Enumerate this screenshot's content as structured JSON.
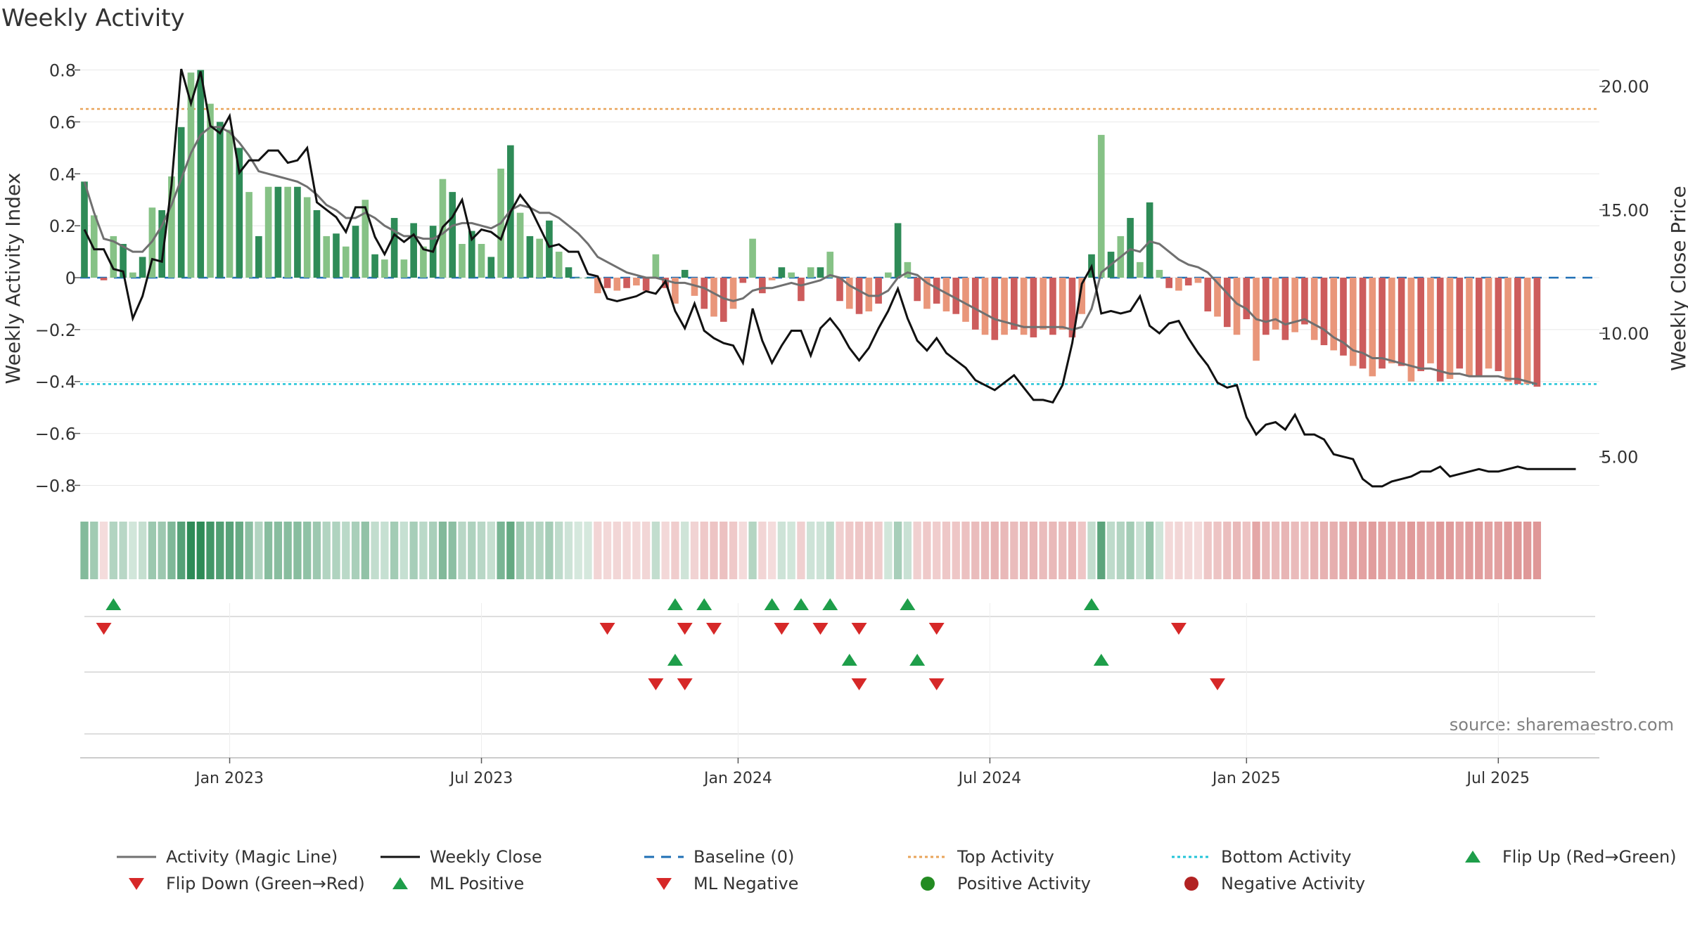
{
  "chart_data": {
    "type": "bar",
    "title": "Weekly Activity",
    "ylabel": "Weekly Activity Index",
    "y2label": "Weekly Close Price",
    "source": "source: sharemaestro.com",
    "ylim": [
      -0.88,
      0.88
    ],
    "y2lim": [
      3.0,
      21.5
    ],
    "yticks": [
      0.8,
      0.6,
      0.4,
      0.2,
      0,
      -0.2,
      -0.4,
      -0.6,
      -0.8
    ],
    "ytick_labels": [
      "0.8",
      "0.6",
      "0.4",
      "0.2",
      "0",
      "−0.2",
      "−0.4",
      "−0.6",
      "−0.8"
    ],
    "y2ticks": [
      20,
      15,
      10,
      5
    ],
    "y2tick_labels": [
      "20.00",
      "15.00",
      "10.00",
      "5.00"
    ],
    "top_activity": 0.65,
    "bottom_activity": -0.41,
    "x_weeks": 157,
    "xticks": [
      {
        "label": "Jan 2023",
        "week": 15
      },
      {
        "label": "Jul 2023",
        "week": 41
      },
      {
        "label": "Jan 2024",
        "week": 67.5
      },
      {
        "label": "Jul 2024",
        "week": 93.5
      },
      {
        "label": "Jan 2025",
        "week": 120
      },
      {
        "label": "Jul 2025",
        "week": 146
      }
    ],
    "series": [
      {
        "name": "Weekly Activity Index",
        "kind": "bar",
        "values": [
          0.37,
          0.24,
          -0.01,
          0.16,
          0.13,
          0.02,
          0.08,
          0.27,
          0.26,
          0.39,
          0.58,
          0.79,
          0.8,
          0.67,
          0.6,
          0.57,
          0.5,
          0.33,
          0.16,
          0.35,
          0.35,
          0.35,
          0.35,
          0.31,
          0.26,
          0.16,
          0.17,
          0.12,
          0.2,
          0.3,
          0.09,
          0.07,
          0.23,
          0.07,
          0.21,
          0.12,
          0.2,
          0.38,
          0.33,
          0.13,
          0.18,
          0.13,
          0.08,
          0.42,
          0.51,
          0.25,
          0.16,
          0.15,
          0.22,
          0.1,
          0.04,
          0.0,
          0.0,
          -0.06,
          -0.04,
          -0.05,
          -0.04,
          -0.03,
          -0.05,
          0.09,
          -0.04,
          -0.1,
          0.03,
          -0.07,
          -0.12,
          -0.15,
          -0.17,
          -0.12,
          -0.02,
          0.15,
          -0.06,
          -0.01,
          0.04,
          0.02,
          -0.09,
          0.04,
          0.04,
          0.1,
          -0.09,
          -0.12,
          -0.14,
          -0.13,
          -0.1,
          0.02,
          0.21,
          0.06,
          -0.09,
          -0.12,
          -0.1,
          -0.13,
          -0.14,
          -0.17,
          -0.2,
          -0.22,
          -0.24,
          -0.22,
          -0.2,
          -0.22,
          -0.23,
          -0.2,
          -0.22,
          -0.2,
          -0.23,
          -0.14,
          0.09,
          0.55,
          0.1,
          0.16,
          0.23,
          0.06,
          0.29,
          0.03,
          -0.04,
          -0.05,
          -0.03,
          -0.02,
          -0.13,
          -0.15,
          -0.19,
          -0.22,
          -0.16,
          -0.32,
          -0.22,
          -0.2,
          -0.24,
          -0.21,
          -0.18,
          -0.24,
          -0.26,
          -0.28,
          -0.3,
          -0.34,
          -0.35,
          -0.38,
          -0.35,
          -0.33,
          -0.34,
          -0.4,
          -0.36,
          -0.33,
          -0.4,
          -0.39,
          -0.35,
          -0.38,
          -0.38,
          -0.35,
          -0.36,
          -0.4,
          -0.41,
          -0.41,
          -0.42
        ]
      },
      {
        "name": "Activity (Magic Line)",
        "kind": "line",
        "values": [
          0.37,
          0.25,
          0.15,
          0.14,
          0.12,
          0.1,
          0.1,
          0.14,
          0.2,
          0.28,
          0.38,
          0.48,
          0.55,
          0.58,
          0.58,
          0.56,
          0.52,
          0.47,
          0.41,
          0.4,
          0.39,
          0.38,
          0.37,
          0.35,
          0.32,
          0.28,
          0.26,
          0.23,
          0.23,
          0.25,
          0.23,
          0.2,
          0.18,
          0.16,
          0.16,
          0.15,
          0.15,
          0.17,
          0.2,
          0.21,
          0.21,
          0.2,
          0.19,
          0.21,
          0.26,
          0.28,
          0.27,
          0.25,
          0.25,
          0.23,
          0.2,
          0.17,
          0.13,
          0.08,
          0.06,
          0.04,
          0.02,
          0.01,
          0.0,
          0.0,
          -0.01,
          -0.02,
          -0.02,
          -0.03,
          -0.04,
          -0.06,
          -0.08,
          -0.09,
          -0.08,
          -0.05,
          -0.04,
          -0.04,
          -0.03,
          -0.02,
          -0.03,
          -0.02,
          -0.01,
          0.01,
          0.0,
          -0.03,
          -0.05,
          -0.07,
          -0.07,
          -0.05,
          0.0,
          0.02,
          0.01,
          -0.02,
          -0.04,
          -0.06,
          -0.08,
          -0.1,
          -0.12,
          -0.14,
          -0.16,
          -0.17,
          -0.18,
          -0.19,
          -0.19,
          -0.19,
          -0.19,
          -0.19,
          -0.2,
          -0.19,
          -0.12,
          0.02,
          0.05,
          0.08,
          0.11,
          0.1,
          0.14,
          0.13,
          0.1,
          0.07,
          0.05,
          0.04,
          0.02,
          -0.02,
          -0.06,
          -0.1,
          -0.12,
          -0.16,
          -0.17,
          -0.16,
          -0.18,
          -0.17,
          -0.16,
          -0.18,
          -0.2,
          -0.23,
          -0.25,
          -0.28,
          -0.29,
          -0.31,
          -0.31,
          -0.32,
          -0.33,
          -0.34,
          -0.35,
          -0.35,
          -0.36,
          -0.37,
          -0.37,
          -0.38,
          -0.38,
          -0.38,
          -0.38,
          -0.39,
          -0.39,
          -0.4,
          -0.41
        ]
      },
      {
        "name": "Weekly Close",
        "kind": "line",
        "axis": "right",
        "values": [
          14.2,
          13.4,
          13.4,
          12.6,
          12.5,
          10.6,
          11.5,
          13.0,
          12.9,
          16.0,
          20.7,
          19.3,
          20.6,
          18.4,
          18.1,
          18.8,
          16.5,
          17.0,
          17.0,
          17.4,
          17.4,
          16.9,
          17.0,
          17.5,
          15.3,
          15.0,
          14.7,
          14.1,
          15.1,
          15.1,
          13.9,
          13.2,
          14.0,
          13.7,
          14.0,
          13.4,
          13.3,
          14.3,
          14.7,
          15.4,
          13.8,
          14.2,
          14.1,
          13.8,
          14.9,
          15.6,
          15.1,
          14.3,
          13.5,
          13.6,
          13.3,
          13.3,
          12.4,
          12.3,
          11.4,
          11.3,
          11.4,
          11.5,
          11.7,
          11.6,
          12.1,
          10.9,
          10.2,
          11.2,
          10.1,
          9.8,
          9.6,
          9.5,
          8.8,
          11.0,
          9.7,
          8.8,
          9.5,
          10.1,
          10.1,
          9.1,
          10.2,
          10.6,
          10.1,
          9.4,
          8.9,
          9.4,
          10.2,
          10.9,
          11.8,
          10.6,
          9.7,
          9.3,
          9.8,
          9.2,
          8.9,
          8.6,
          8.1,
          7.9,
          7.7,
          8.0,
          8.3,
          7.8,
          7.3,
          7.3,
          7.2,
          7.9,
          9.6,
          12.0,
          12.7,
          10.8,
          10.9,
          10.8,
          10.9,
          11.5,
          10.3,
          10.0,
          10.4,
          10.5,
          9.8,
          9.2,
          8.7,
          8.0,
          7.8,
          7.9,
          6.6,
          5.9,
          6.3,
          6.4,
          6.1,
          6.7,
          5.9,
          5.9,
          5.7,
          5.1,
          5.0,
          4.9,
          4.1,
          3.8,
          3.8,
          4.0,
          4.1,
          4.2,
          4.4,
          4.4,
          4.6,
          4.2,
          4.3,
          4.4,
          4.5,
          4.4,
          4.4,
          4.5,
          4.6,
          4.5,
          4.5,
          4.5,
          4.5,
          4.5,
          4.5
        ]
      }
    ],
    "flip_up_weeks": [
      3,
      61,
      64,
      71,
      74,
      77,
      85,
      104
    ],
    "flip_down_weeks": [
      2,
      54,
      62,
      65,
      72,
      76,
      80,
      88,
      113
    ],
    "ml_positive_weeks": [
      61,
      79,
      86,
      105
    ],
    "ml_negative_weeks": [
      59,
      62,
      80,
      88,
      117
    ],
    "colors": {
      "bar_pos_strong": "#2e8b57",
      "bar_pos_weak": "#86c286",
      "bar_neg_strong": "#cd5c5c",
      "bar_neg_weak": "#e9967a",
      "magic_line": "#707070",
      "close": "#111111",
      "baseline": "#1f6fb5",
      "top_line": "#e9a45a",
      "bottom_line": "#22c4d8",
      "marker_up": "#1e9e4a",
      "marker_down": "#d62828",
      "dot_pos": "#238b22",
      "dot_neg": "#b22222"
    },
    "legend": [
      {
        "label": "Activity (Magic Line)",
        "symbol": "line",
        "color": "#707070"
      },
      {
        "label": "Weekly Close",
        "symbol": "line",
        "color": "#111111"
      },
      {
        "label": "Baseline (0)",
        "symbol": "dash",
        "color": "#1f6fb5"
      },
      {
        "label": "Top Activity",
        "symbol": "dot-line",
        "color": "#e9a45a"
      },
      {
        "label": "Bottom Activity",
        "symbol": "dot-line",
        "color": "#22c4d8"
      },
      {
        "label": "Flip Up (Red→Green)",
        "symbol": "triangle-up",
        "color": "#1e9e4a"
      },
      {
        "label": "Flip Down (Green→Red)",
        "symbol": "triangle-down",
        "color": "#d62828"
      },
      {
        "label": "ML Positive",
        "symbol": "triangle-up",
        "color": "#1e9e4a"
      },
      {
        "label": "ML Negative",
        "symbol": "triangle-down",
        "color": "#d62828"
      },
      {
        "label": "Positive Activity",
        "symbol": "circle",
        "color": "#238b22"
      },
      {
        "label": "Negative Activity",
        "symbol": "circle",
        "color": "#b22222"
      }
    ]
  }
}
